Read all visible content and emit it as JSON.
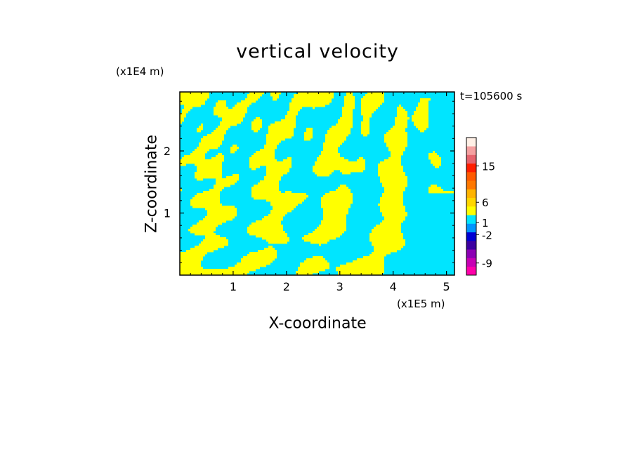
{
  "chart_data": {
    "type": "heatmap",
    "title": "vertical velocity",
    "xlabel": "X-coordinate",
    "ylabel": "Z-coordinate",
    "x_unit": "(x1E5 m)",
    "y_unit": "(x1E4 m)",
    "time_label": "t=105600 s",
    "xlim": [
      0,
      5.15
    ],
    "ylim": [
      0,
      2.95
    ],
    "x_ticks": [
      1,
      2,
      3,
      4,
      5
    ],
    "y_ticks": [
      1,
      2
    ],
    "x_tick_labels": [
      "1",
      "2",
      "3",
      "4",
      "5"
    ],
    "y_tick_labels": [
      "1",
      "2"
    ],
    "field_colors": {
      "positive": "#ffff00",
      "negative": "#00e5ff"
    },
    "colorbar": {
      "levels": [
        {
          "color": "#ff00aa"
        },
        {
          "color": "#c800b4"
        },
        {
          "color": "#8c00b4"
        },
        {
          "color": "#3c00a0"
        },
        {
          "color": "#0000d2"
        },
        {
          "color": "#0096ff"
        },
        {
          "color": "#00e5ff"
        },
        {
          "color": "#ffff00"
        },
        {
          "color": "#ffd700"
        },
        {
          "color": "#ffb400"
        },
        {
          "color": "#ff7800"
        },
        {
          "color": "#ff5a00"
        },
        {
          "color": "#ff1e00"
        },
        {
          "color": "#e6646e"
        },
        {
          "color": "#f5a0a0"
        },
        {
          "color": "#fff0e6"
        }
      ],
      "tick_labels": [
        "15",
        "6",
        "1",
        "-2",
        "-9"
      ],
      "tick_values": [
        15,
        6,
        1,
        -2,
        -9
      ]
    }
  }
}
